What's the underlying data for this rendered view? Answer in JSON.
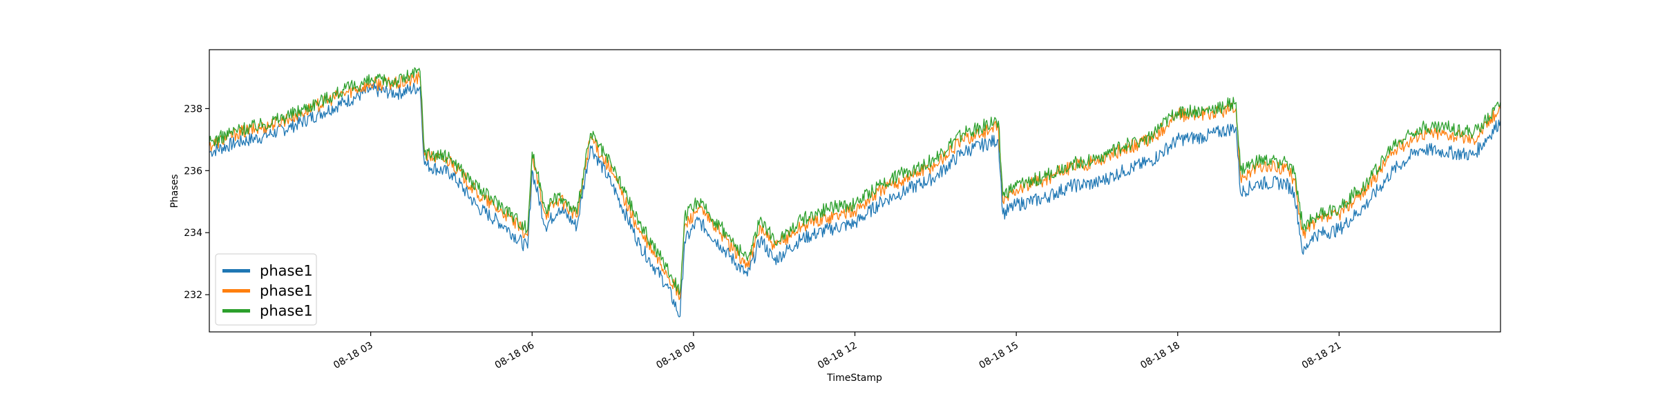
{
  "chart_data": {
    "type": "line",
    "title": "",
    "xlabel": "TimeStamp",
    "ylabel": "Phases",
    "x_axis": {
      "type": "time",
      "range": [
        "08-18 00:00",
        "08-19 00:00"
      ],
      "ticks": [
        "08-18 03",
        "08-18 06",
        "08-18 09",
        "08-18 12",
        "08-18 15",
        "08-18 18",
        "08-18 21"
      ]
    },
    "y_axis": {
      "range": [
        230.8,
        239.9
      ],
      "ticks": [
        "232",
        "234",
        "236",
        "238"
      ]
    },
    "grid": false,
    "legend": {
      "placement": "lower-left"
    },
    "series": [
      {
        "name": "phase1",
        "color": "#1f77b4",
        "points": [
          [
            "08-18 00:00",
            236.6
          ],
          [
            "08-18 00:30",
            236.9
          ],
          [
            "08-18 01:00",
            237.1
          ],
          [
            "08-18 01:30",
            237.4
          ],
          [
            "08-18 02:00",
            237.8
          ],
          [
            "08-18 02:30",
            238.2
          ],
          [
            "08-18 03:00",
            238.6
          ],
          [
            "08-18 03:30",
            238.5
          ],
          [
            "08-18 03:55",
            238.7
          ],
          [
            "08-18 04:00",
            236.2
          ],
          [
            "08-18 04:30",
            235.9
          ],
          [
            "08-18 05:00",
            234.8
          ],
          [
            "08-18 05:30",
            234.2
          ],
          [
            "08-18 05:55",
            233.5
          ],
          [
            "08-18 06:00",
            236.0
          ],
          [
            "08-18 06:15",
            234.2
          ],
          [
            "08-18 06:30",
            234.8
          ],
          [
            "08-18 06:50",
            234.2
          ],
          [
            "08-18 07:05",
            236.8
          ],
          [
            "08-18 07:30",
            235.5
          ],
          [
            "08-18 08:00",
            233.6
          ],
          [
            "08-18 08:30",
            232.3
          ],
          [
            "08-18 08:45",
            231.3
          ],
          [
            "08-18 08:50",
            233.7
          ],
          [
            "08-18 09:05",
            234.4
          ],
          [
            "08-18 09:30",
            233.6
          ],
          [
            "08-18 10:00",
            232.6
          ],
          [
            "08-18 10:15",
            233.8
          ],
          [
            "08-18 10:30",
            233.1
          ],
          [
            "08-18 11:00",
            233.8
          ],
          [
            "08-18 11:30",
            234.1
          ],
          [
            "08-18 12:00",
            234.3
          ],
          [
            "08-18 12:30",
            235.0
          ],
          [
            "08-18 13:00",
            235.4
          ],
          [
            "08-18 13:30",
            235.8
          ],
          [
            "08-18 14:00",
            236.6
          ],
          [
            "08-18 14:40",
            237.0
          ],
          [
            "08-18 14:45",
            234.6
          ],
          [
            "08-18 15:00",
            234.9
          ],
          [
            "08-18 15:30",
            235.1
          ],
          [
            "08-18 16:00",
            235.5
          ],
          [
            "08-18 16:30",
            235.6
          ],
          [
            "08-18 17:00",
            236.0
          ],
          [
            "08-18 17:30",
            236.3
          ],
          [
            "08-18 18:00",
            237.0
          ],
          [
            "08-18 18:30",
            237.1
          ],
          [
            "08-18 19:05",
            237.4
          ],
          [
            "08-18 19:10",
            235.3
          ],
          [
            "08-18 19:30",
            235.6
          ],
          [
            "08-18 20:00",
            235.6
          ],
          [
            "08-18 20:10",
            235.3
          ],
          [
            "08-18 20:20",
            233.3
          ],
          [
            "08-18 20:30",
            233.9
          ],
          [
            "08-18 21:00",
            234.1
          ],
          [
            "08-18 21:30",
            234.9
          ],
          [
            "08-18 22:00",
            236.0
          ],
          [
            "08-18 22:30",
            236.7
          ],
          [
            "08-18 23:00",
            236.6
          ],
          [
            "08-18 23:30",
            236.5
          ],
          [
            "08-19 00:00",
            237.6
          ]
        ]
      },
      {
        "name": "phase1",
        "color": "#ff7f0e",
        "points": [
          [
            "08-18 00:00",
            236.8
          ],
          [
            "08-18 00:30",
            237.2
          ],
          [
            "08-18 01:00",
            237.4
          ],
          [
            "08-18 01:30",
            237.7
          ],
          [
            "08-18 02:00",
            238.1
          ],
          [
            "08-18 02:30",
            238.5
          ],
          [
            "08-18 03:00",
            238.8
          ],
          [
            "08-18 03:30",
            238.8
          ],
          [
            "08-18 03:55",
            239.0
          ],
          [
            "08-18 04:00",
            236.5
          ],
          [
            "08-18 04:30",
            236.3
          ],
          [
            "08-18 05:00",
            235.2
          ],
          [
            "08-18 05:30",
            234.6
          ],
          [
            "08-18 05:55",
            233.9
          ],
          [
            "08-18 06:00",
            236.4
          ],
          [
            "08-18 06:15",
            234.6
          ],
          [
            "08-18 06:30",
            235.1
          ],
          [
            "08-18 06:50",
            234.5
          ],
          [
            "08-18 07:05",
            237.1
          ],
          [
            "08-18 07:30",
            235.9
          ],
          [
            "08-18 08:00",
            234.0
          ],
          [
            "08-18 08:30",
            232.7
          ],
          [
            "08-18 08:45",
            231.9
          ],
          [
            "08-18 08:50",
            234.2
          ],
          [
            "08-18 09:05",
            234.8
          ],
          [
            "08-18 09:30",
            234.0
          ],
          [
            "08-18 10:00",
            232.9
          ],
          [
            "08-18 10:15",
            234.2
          ],
          [
            "08-18 10:30",
            233.5
          ],
          [
            "08-18 11:00",
            234.2
          ],
          [
            "08-18 11:30",
            234.5
          ],
          [
            "08-18 12:00",
            234.7
          ],
          [
            "08-18 12:30",
            235.4
          ],
          [
            "08-18 13:00",
            235.8
          ],
          [
            "08-18 13:30",
            236.2
          ],
          [
            "08-18 14:00",
            237.0
          ],
          [
            "08-18 14:40",
            237.4
          ],
          [
            "08-18 14:45",
            235.0
          ],
          [
            "08-18 15:00",
            235.4
          ],
          [
            "08-18 15:30",
            235.7
          ],
          [
            "08-18 16:00",
            236.1
          ],
          [
            "08-18 16:30",
            236.3
          ],
          [
            "08-18 17:00",
            236.7
          ],
          [
            "08-18 17:30",
            237.0
          ],
          [
            "08-18 18:00",
            237.8
          ],
          [
            "08-18 18:30",
            237.8
          ],
          [
            "08-18 19:05",
            238.0
          ],
          [
            "08-18 19:10",
            235.8
          ],
          [
            "08-18 19:30",
            236.1
          ],
          [
            "08-18 20:00",
            236.1
          ],
          [
            "08-18 20:10",
            235.7
          ],
          [
            "08-18 20:20",
            233.9
          ],
          [
            "08-18 20:30",
            234.3
          ],
          [
            "08-18 21:00",
            234.6
          ],
          [
            "08-18 21:30",
            235.4
          ],
          [
            "08-18 22:00",
            236.6
          ],
          [
            "08-18 22:30",
            237.2
          ],
          [
            "08-18 23:00",
            237.2
          ],
          [
            "08-18 23:30",
            237.0
          ],
          [
            "08-19 00:00",
            238.0
          ]
        ]
      },
      {
        "name": "phase1",
        "color": "#2ca02c",
        "points": [
          [
            "08-18 00:00",
            236.9
          ],
          [
            "08-18 00:30",
            237.3
          ],
          [
            "08-18 01:00",
            237.5
          ],
          [
            "08-18 01:30",
            237.8
          ],
          [
            "08-18 02:00",
            238.2
          ],
          [
            "08-18 02:30",
            238.6
          ],
          [
            "08-18 03:00",
            238.9
          ],
          [
            "08-18 03:30",
            238.9
          ],
          [
            "08-18 03:55",
            239.2
          ],
          [
            "08-18 04:00",
            236.6
          ],
          [
            "08-18 04:30",
            236.4
          ],
          [
            "08-18 05:00",
            235.4
          ],
          [
            "08-18 05:30",
            234.8
          ],
          [
            "08-18 05:55",
            234.1
          ],
          [
            "08-18 06:00",
            236.6
          ],
          [
            "08-18 06:15",
            234.8
          ],
          [
            "08-18 06:30",
            235.2
          ],
          [
            "08-18 06:50",
            234.6
          ],
          [
            "08-18 07:05",
            237.2
          ],
          [
            "08-18 07:30",
            236.1
          ],
          [
            "08-18 08:00",
            234.3
          ],
          [
            "08-18 08:30",
            232.9
          ],
          [
            "08-18 08:45",
            232.1
          ],
          [
            "08-18 08:50",
            234.5
          ],
          [
            "08-18 09:05",
            235.0
          ],
          [
            "08-18 09:30",
            234.2
          ],
          [
            "08-18 10:00",
            233.1
          ],
          [
            "08-18 10:15",
            234.5
          ],
          [
            "08-18 10:30",
            233.7
          ],
          [
            "08-18 11:00",
            234.4
          ],
          [
            "08-18 11:30",
            234.8
          ],
          [
            "08-18 12:00",
            234.9
          ],
          [
            "08-18 12:30",
            235.6
          ],
          [
            "08-18 13:00",
            236.0
          ],
          [
            "08-18 13:30",
            236.4
          ],
          [
            "08-18 14:00",
            237.2
          ],
          [
            "08-18 14:40",
            237.6
          ],
          [
            "08-18 14:45",
            235.2
          ],
          [
            "08-18 15:00",
            235.5
          ],
          [
            "08-18 15:30",
            235.8
          ],
          [
            "08-18 16:00",
            236.2
          ],
          [
            "08-18 16:30",
            236.4
          ],
          [
            "08-18 17:00",
            236.8
          ],
          [
            "08-18 17:30",
            237.1
          ],
          [
            "08-18 18:00",
            237.9
          ],
          [
            "08-18 18:30",
            237.9
          ],
          [
            "08-18 19:05",
            238.2
          ],
          [
            "08-18 19:10",
            236.0
          ],
          [
            "08-18 19:30",
            236.3
          ],
          [
            "08-18 20:00",
            236.3
          ],
          [
            "08-18 20:10",
            235.9
          ],
          [
            "08-18 20:20",
            234.1
          ],
          [
            "08-18 20:30",
            234.5
          ],
          [
            "08-18 21:00",
            234.8
          ],
          [
            "08-18 21:30",
            235.6
          ],
          [
            "08-18 22:00",
            236.8
          ],
          [
            "08-18 22:30",
            237.4
          ],
          [
            "08-18 23:00",
            237.4
          ],
          [
            "08-18 23:30",
            237.2
          ],
          [
            "08-19 00:00",
            238.2
          ]
        ]
      }
    ]
  }
}
